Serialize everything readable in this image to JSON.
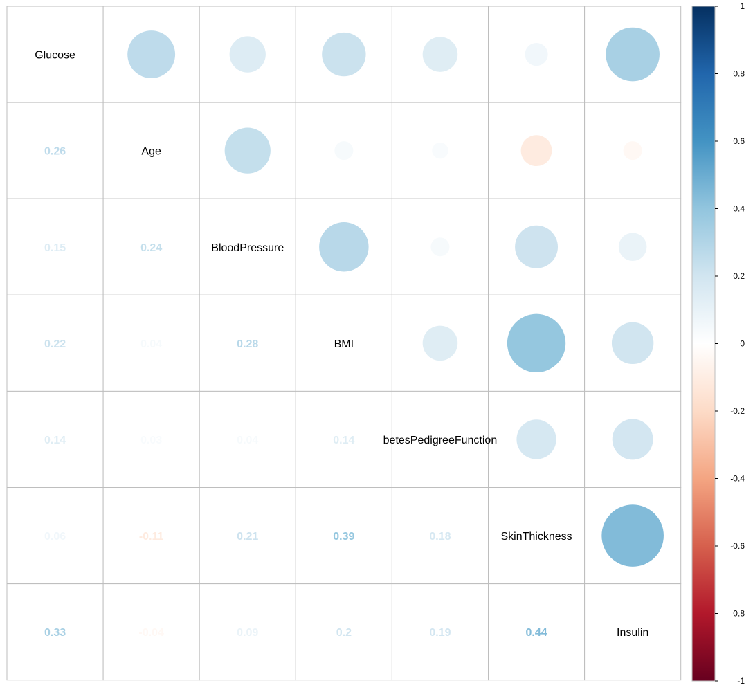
{
  "chart_data": {
    "type": "heatmap",
    "variables": [
      "Glucose",
      "Age",
      "BloodPressure",
      "BMI",
      "DiabetesPedigreeFunction",
      "SkinThickness",
      "Insulin"
    ],
    "labels": [
      "Glucose",
      "Age",
      "BloodPressure",
      "BMI",
      "betesPedigreeFunction",
      "SkinThickness",
      "Insulin"
    ],
    "matrix": [
      [
        1.0,
        0.26,
        0.15,
        0.22,
        0.14,
        0.06,
        0.33
      ],
      [
        0.26,
        1.0,
        0.24,
        0.04,
        0.03,
        -0.11,
        -0.04
      ],
      [
        0.15,
        0.24,
        1.0,
        0.28,
        0.04,
        0.21,
        0.09
      ],
      [
        0.22,
        0.04,
        0.28,
        1.0,
        0.14,
        0.39,
        0.2
      ],
      [
        0.14,
        0.03,
        0.04,
        0.14,
        1.0,
        0.18,
        0.19
      ],
      [
        0.06,
        -0.11,
        0.21,
        0.39,
        0.18,
        1.0,
        0.44
      ],
      [
        0.33,
        -0.04,
        0.09,
        0.2,
        0.19,
        0.44,
        1.0
      ]
    ],
    "lower_text": [
      [
        null,
        null,
        null,
        null,
        null,
        null,
        null
      ],
      [
        "0.26",
        null,
        null,
        null,
        null,
        null,
        null
      ],
      [
        "0.15",
        "0.24",
        null,
        null,
        null,
        null,
        null
      ],
      [
        "0.22",
        "0.04",
        "0.28",
        null,
        null,
        null,
        null
      ],
      [
        "0.14",
        "0.03",
        "0.04",
        "0.14",
        null,
        null,
        null
      ],
      [
        "0.06",
        "-0.11",
        "0.21",
        "0.39",
        "0.18",
        null,
        null
      ],
      [
        "0.33",
        "-0.04",
        "0.09",
        "0.2",
        "0.19",
        "0.44",
        null
      ]
    ],
    "upper_shape": "circle",
    "lower_shape": "number",
    "colorbar": {
      "ticks": [
        "1",
        "0.8",
        "0.6",
        "0.4",
        "0.2",
        "0",
        "-0.2",
        "-0.4",
        "-0.6",
        "-0.8",
        "-1"
      ],
      "range": [
        -1,
        1
      ],
      "palette": [
        "#67001F",
        "#B2182B",
        "#D6604D",
        "#F4A582",
        "#FDDBC7",
        "#FFFFFF",
        "#D1E5F0",
        "#92C5DE",
        "#4393C3",
        "#2166AC",
        "#053061"
      ]
    }
  }
}
